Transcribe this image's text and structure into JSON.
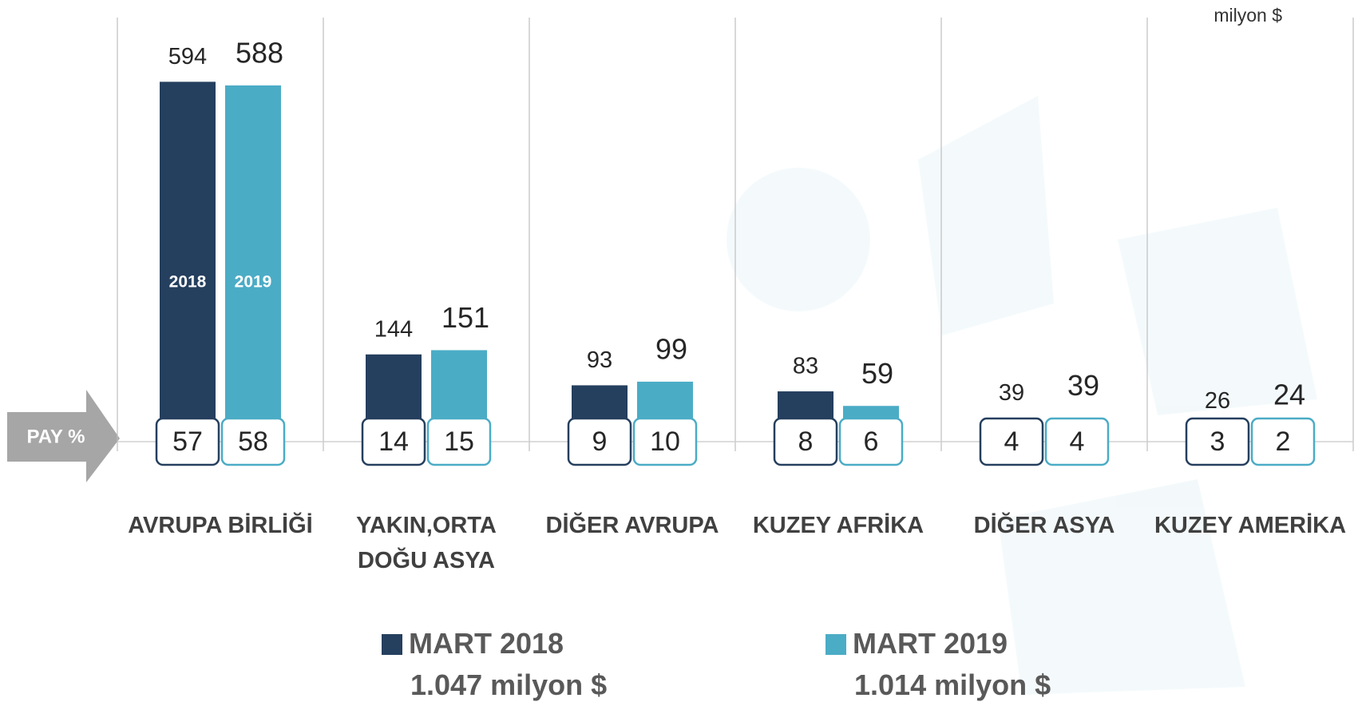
{
  "chart_data": {
    "type": "bar",
    "unit": "milyon $",
    "share_label": "PAY %",
    "categories": [
      "AVRUPA BİRLİĞİ",
      "YAKIN,ORTA DOĞU ASYA",
      "DİĞER AVRUPA",
      "KUZEY AFRİKA",
      "DİĞER ASYA",
      "KUZEY AMERİKA"
    ],
    "series": [
      {
        "name": "MART 2018",
        "short_name": "2018",
        "total": "1.047 milyon $",
        "color": "#253f5e",
        "values": [
          594,
          144,
          93,
          83,
          39,
          26
        ],
        "shares": [
          57,
          14,
          9,
          8,
          4,
          3
        ]
      },
      {
        "name": "MART 2019",
        "short_name": "2019",
        "total": "1.014 milyon $",
        "color": "#4bacc6",
        "values": [
          588,
          151,
          99,
          59,
          39,
          24
        ],
        "shares": [
          58,
          15,
          10,
          6,
          4,
          2
        ]
      }
    ],
    "ylim": [
      0,
      700
    ]
  }
}
